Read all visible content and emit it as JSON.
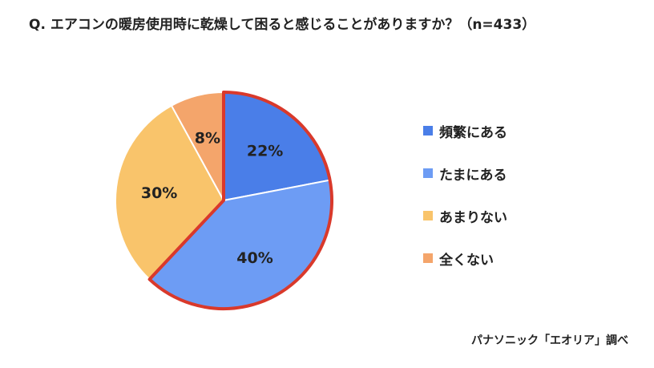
{
  "chart_data": {
    "type": "pie",
    "title": "Q. エアコンの暖房使用時に乾燥して困ると感じることがありますか？（n=433）",
    "source": "パナソニック「エオリア」調べ",
    "categories": [
      "頻繁にある",
      "たまにある",
      "あまりない",
      "全くない"
    ],
    "values": [
      22,
      40,
      30,
      8
    ],
    "labels": [
      "22%",
      "40%",
      "30%",
      "8%"
    ],
    "colors": [
      "#4a7ee8",
      "#6d9cf4",
      "#f9c46b",
      "#f4a56b"
    ],
    "highlight_border_color": "#d9392b",
    "legend_position": "right"
  }
}
